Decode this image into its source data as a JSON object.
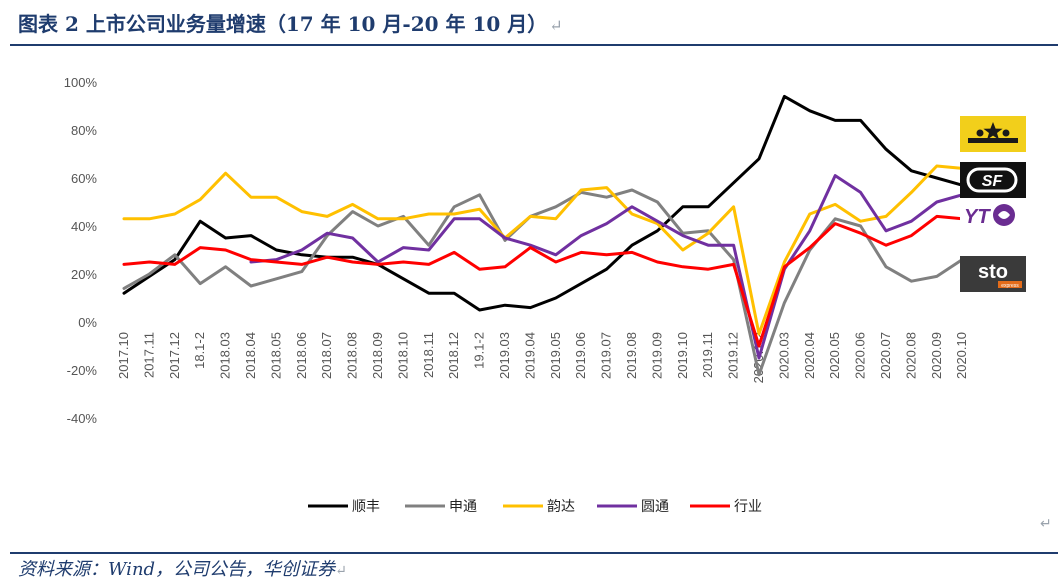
{
  "title": "图表 2 上市公司业务量增速（17 年 10 月-20 年 10 月）",
  "return_mark": "↵",
  "source": "资料来源：Wind，公司公告，华创证券",
  "logos": [
    {
      "name": "zto-logo",
      "label": "ZTO"
    },
    {
      "name": "sf-logo",
      "label": "SF"
    },
    {
      "name": "yto-logo",
      "label": "YTO"
    },
    {
      "name": "sto-logo",
      "label": "sto",
      "sublabel": "express"
    }
  ],
  "chart_data": {
    "type": "line",
    "title": "",
    "xlabel": "",
    "ylabel": "",
    "ylim": [
      -40,
      100
    ],
    "yticks": [
      -40,
      -20,
      0,
      20,
      40,
      60,
      80,
      100
    ],
    "ytick_labels": [
      "-40%",
      "-20%",
      "0%",
      "20%",
      "40%",
      "60%",
      "80%",
      "100%"
    ],
    "legend_position": "bottom",
    "categories": [
      "2017.10",
      "2017.11",
      "2017.12",
      "18.1-2",
      "2018.03",
      "2018.04",
      "2018.05",
      "2018.06",
      "2018.07",
      "2018.08",
      "2018.09",
      "2018.10",
      "2018.11",
      "2018.12",
      "19.1-2",
      "2019.03",
      "2019.04",
      "2019.05",
      "2019.06",
      "2019.07",
      "2019.08",
      "2019.09",
      "2019.10",
      "2019.11",
      "2019.12",
      "2020.1-2",
      "2020.03",
      "2020.04",
      "2020.05",
      "2020.06",
      "2020.07",
      "2020.08",
      "2020.09",
      "2020.10"
    ],
    "series": [
      {
        "name": "顺丰",
        "color": "#000000",
        "values": [
          12,
          19,
          26,
          42,
          35,
          36,
          30,
          28,
          27,
          27,
          24,
          18,
          12,
          12,
          5,
          7,
          6,
          10,
          16,
          22,
          32,
          38,
          48,
          48,
          58,
          68,
          94,
          88,
          84,
          84,
          72,
          63,
          60,
          57
        ]
      },
      {
        "name": "申通",
        "color": "#808080",
        "values": [
          14,
          20,
          28,
          16,
          23,
          15,
          18,
          21,
          36,
          46,
          40,
          44,
          32,
          48,
          53,
          34,
          44,
          48,
          54,
          52,
          55,
          50,
          37,
          38,
          26,
          -22,
          8,
          30,
          43,
          40,
          23,
          17,
          19,
          26
        ]
      },
      {
        "name": "韵达",
        "color": "#ffc000",
        "values": [
          43,
          43,
          45,
          51,
          62,
          52,
          52,
          46,
          44,
          49,
          43,
          43,
          45,
          45,
          47,
          35,
          44,
          43,
          55,
          56,
          45,
          41,
          30,
          37,
          48,
          -5,
          25,
          45,
          49,
          42,
          44,
          54,
          65,
          64
        ]
      },
      {
        "name": "圆通",
        "color": "#7030a0",
        "values": [
          null,
          null,
          null,
          null,
          null,
          25,
          26,
          30,
          37,
          35,
          25,
          31,
          30,
          43,
          43,
          35,
          32,
          28,
          36,
          41,
          48,
          42,
          36,
          32,
          32,
          -15,
          22,
          38,
          61,
          54,
          38,
          42,
          50,
          53
        ]
      },
      {
        "name": "行业",
        "color": "#ff0000",
        "values": [
          24,
          25,
          24,
          31,
          30,
          26,
          25,
          24,
          27,
          25,
          24,
          25,
          24,
          29,
          22,
          23,
          31,
          25,
          29,
          28,
          29,
          25,
          23,
          22,
          24,
          -10,
          23,
          31,
          41,
          37,
          32,
          36,
          44,
          43
        ]
      }
    ]
  }
}
